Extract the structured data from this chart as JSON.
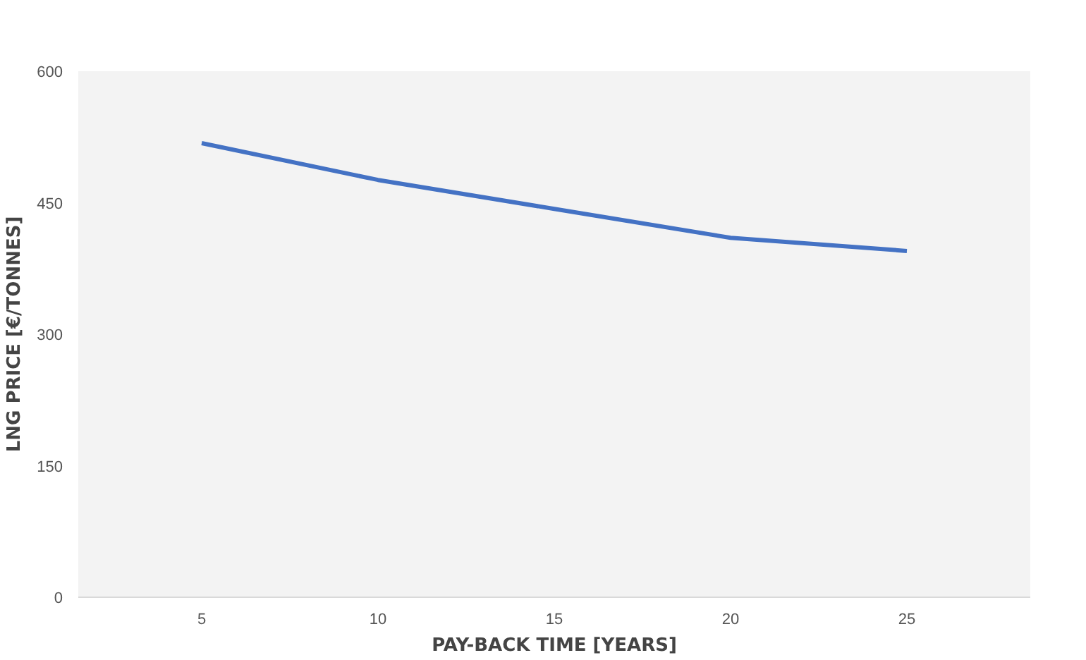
{
  "chart_data": {
    "type": "line",
    "xlabel": "PAY-BACK TIME [YEARS]",
    "ylabel": "LNG PRICE [€/TONNES]",
    "categories": [
      "5",
      "10",
      "15",
      "20",
      "25"
    ],
    "series": [
      {
        "color": "#4472c4",
        "values": [
          518,
          476,
          443,
          410,
          395
        ]
      }
    ],
    "ylim": [
      0,
      600
    ],
    "yticks": [
      0,
      150,
      300,
      450,
      600
    ],
    "grid": false,
    "marker": "none",
    "line_style": "solid"
  }
}
